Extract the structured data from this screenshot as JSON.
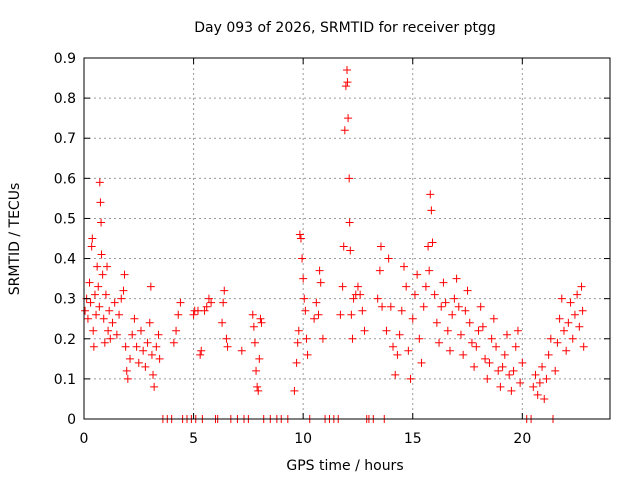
{
  "chart_data": {
    "type": "scatter",
    "title": "Day 093 of 2026, SRMTID for receiver ptgg",
    "xlabel": "GPS time / hours",
    "ylabel": "SRMTID / TECUs",
    "xlim": [
      0,
      24
    ],
    "ylim": [
      0,
      0.9
    ],
    "x_ticks": [
      0,
      5,
      10,
      15,
      20
    ],
    "x_tick_labels": [
      "0",
      "5",
      "10",
      "15",
      "20"
    ],
    "y_ticks": [
      0,
      0.1,
      0.2,
      0.3,
      0.4,
      0.5,
      0.6,
      0.7,
      0.8,
      0.9
    ],
    "y_tick_labels": [
      "0",
      "0.1",
      "0.2",
      "0.3",
      "0.4",
      "0.5",
      "0.6",
      "0.7",
      "0.8",
      "0.9"
    ],
    "grid": true,
    "marker": "+",
    "color": "#ff0000",
    "series": [
      {
        "name": "SRMTID",
        "points": [
          [
            0.05,
            0.27
          ],
          [
            0.12,
            0.3
          ],
          [
            0.18,
            0.25
          ],
          [
            0.25,
            0.34
          ],
          [
            0.3,
            0.29
          ],
          [
            0.35,
            0.43
          ],
          [
            0.38,
            0.45
          ],
          [
            0.42,
            0.22
          ],
          [
            0.45,
            0.18
          ],
          [
            0.5,
            0.31
          ],
          [
            0.55,
            0.26
          ],
          [
            0.6,
            0.38
          ],
          [
            0.65,
            0.33
          ],
          [
            0.7,
            0.28
          ],
          [
            0.72,
            0.59
          ],
          [
            0.75,
            0.54
          ],
          [
            0.78,
            0.49
          ],
          [
            0.8,
            0.41
          ],
          [
            0.85,
            0.36
          ],
          [
            0.9,
            0.25
          ],
          [
            0.95,
            0.19
          ],
          [
            1.0,
            0.31
          ],
          [
            1.05,
            0.38
          ],
          [
            1.1,
            0.22
          ],
          [
            1.15,
            0.27
          ],
          [
            1.2,
            0.2
          ],
          [
            1.3,
            0.24
          ],
          [
            1.4,
            0.29
          ],
          [
            1.5,
            0.21
          ],
          [
            1.6,
            0.26
          ],
          [
            1.7,
            0.3
          ],
          [
            1.8,
            0.32
          ],
          [
            1.85,
            0.36
          ],
          [
            1.9,
            0.18
          ],
          [
            1.95,
            0.12
          ],
          [
            2.0,
            0.1
          ],
          [
            2.1,
            0.15
          ],
          [
            2.2,
            0.21
          ],
          [
            2.3,
            0.25
          ],
          [
            2.4,
            0.18
          ],
          [
            2.5,
            0.14
          ],
          [
            2.6,
            0.22
          ],
          [
            2.7,
            0.17
          ],
          [
            2.8,
            0.13
          ],
          [
            2.9,
            0.19
          ],
          [
            3.0,
            0.24
          ],
          [
            3.05,
            0.33
          ],
          [
            3.1,
            0.16
          ],
          [
            3.15,
            0.11
          ],
          [
            3.2,
            0.08
          ],
          [
            3.3,
            0.18
          ],
          [
            3.4,
            0.21
          ],
          [
            3.45,
            0.15
          ],
          [
            3.6,
            0.0
          ],
          [
            3.8,
            0.0
          ],
          [
            4.0,
            0.0
          ],
          [
            4.1,
            0.19
          ],
          [
            4.2,
            0.22
          ],
          [
            4.3,
            0.26
          ],
          [
            4.4,
            0.29
          ],
          [
            4.5,
            0.0
          ],
          [
            4.7,
            0.0
          ],
          [
            4.9,
            0.0
          ],
          [
            5.0,
            0.26
          ],
          [
            5.05,
            0.27
          ],
          [
            5.1,
            0.0
          ],
          [
            5.2,
            0.27
          ],
          [
            5.3,
            0.16
          ],
          [
            5.35,
            0.17
          ],
          [
            5.4,
            0.0
          ],
          [
            5.5,
            0.27
          ],
          [
            5.6,
            0.28
          ],
          [
            5.7,
            0.3
          ],
          [
            5.8,
            0.29
          ],
          [
            6.0,
            0.0
          ],
          [
            6.1,
            0.0
          ],
          [
            6.3,
            0.24
          ],
          [
            6.35,
            0.29
          ],
          [
            6.4,
            0.32
          ],
          [
            6.5,
            0.2
          ],
          [
            6.55,
            0.18
          ],
          [
            6.7,
            0.0
          ],
          [
            7.0,
            0.0
          ],
          [
            7.2,
            0.17
          ],
          [
            7.3,
            0.0
          ],
          [
            7.5,
            0.0
          ],
          [
            7.7,
            0.26
          ],
          [
            7.75,
            0.23
          ],
          [
            7.8,
            0.19
          ],
          [
            7.85,
            0.12
          ],
          [
            7.9,
            0.08
          ],
          [
            7.95,
            0.07
          ],
          [
            8.0,
            0.15
          ],
          [
            8.05,
            0.25
          ],
          [
            8.1,
            0.24
          ],
          [
            8.2,
            0.0
          ],
          [
            8.5,
            0.0
          ],
          [
            8.8,
            0.0
          ],
          [
            9.0,
            0.0
          ],
          [
            9.3,
            0.0
          ],
          [
            9.6,
            0.07
          ],
          [
            9.7,
            0.14
          ],
          [
            9.75,
            0.19
          ],
          [
            9.8,
            0.22
          ],
          [
            9.85,
            0.46
          ],
          [
            9.9,
            0.45
          ],
          [
            9.95,
            0.4
          ],
          [
            10.0,
            0.35
          ],
          [
            10.05,
            0.3
          ],
          [
            10.1,
            0.27
          ],
          [
            10.15,
            0.2
          ],
          [
            10.2,
            0.16
          ],
          [
            10.3,
            0.0
          ],
          [
            10.5,
            0.25
          ],
          [
            10.6,
            0.29
          ],
          [
            10.7,
            0.26
          ],
          [
            10.75,
            0.37
          ],
          [
            10.8,
            0.34
          ],
          [
            10.9,
            0.2
          ],
          [
            11.0,
            0.0
          ],
          [
            11.2,
            0.0
          ],
          [
            11.4,
            0.0
          ],
          [
            11.6,
            0.0
          ],
          [
            11.7,
            0.26
          ],
          [
            11.8,
            0.33
          ],
          [
            11.85,
            0.43
          ],
          [
            11.9,
            0.72
          ],
          [
            11.95,
            0.83
          ],
          [
            12.0,
            0.87
          ],
          [
            12.02,
            0.84
          ],
          [
            12.05,
            0.75
          ],
          [
            12.1,
            0.6
          ],
          [
            12.12,
            0.49
          ],
          [
            12.15,
            0.42
          ],
          [
            12.2,
            0.26
          ],
          [
            12.25,
            0.2
          ],
          [
            12.3,
            0.3
          ],
          [
            12.4,
            0.31
          ],
          [
            12.5,
            0.33
          ],
          [
            12.6,
            0.31
          ],
          [
            12.7,
            0.27
          ],
          [
            12.8,
            0.22
          ],
          [
            12.9,
            0.0
          ],
          [
            13.0,
            0.0
          ],
          [
            13.2,
            0.0
          ],
          [
            13.4,
            0.3
          ],
          [
            13.5,
            0.37
          ],
          [
            13.55,
            0.43
          ],
          [
            13.6,
            0.28
          ],
          [
            13.7,
            0.0
          ],
          [
            13.8,
            0.22
          ],
          [
            13.9,
            0.4
          ],
          [
            14.0,
            0.28
          ],
          [
            14.1,
            0.18
          ],
          [
            14.2,
            0.11
          ],
          [
            14.3,
            0.16
          ],
          [
            14.4,
            0.21
          ],
          [
            14.5,
            0.27
          ],
          [
            14.6,
            0.38
          ],
          [
            14.7,
            0.33
          ],
          [
            14.8,
            0.17
          ],
          [
            14.9,
            0.1
          ],
          [
            15.0,
            0.25
          ],
          [
            15.1,
            0.31
          ],
          [
            15.2,
            0.36
          ],
          [
            15.3,
            0.2
          ],
          [
            15.4,
            0.14
          ],
          [
            15.5,
            0.28
          ],
          [
            15.6,
            0.33
          ],
          [
            15.7,
            0.43
          ],
          [
            15.75,
            0.37
          ],
          [
            15.8,
            0.56
          ],
          [
            15.85,
            0.52
          ],
          [
            15.9,
            0.44
          ],
          [
            16.0,
            0.31
          ],
          [
            16.1,
            0.24
          ],
          [
            16.2,
            0.19
          ],
          [
            16.3,
            0.28
          ],
          [
            16.4,
            0.34
          ],
          [
            16.5,
            0.29
          ],
          [
            16.6,
            0.22
          ],
          [
            16.7,
            0.17
          ],
          [
            16.8,
            0.26
          ],
          [
            16.9,
            0.3
          ],
          [
            17.0,
            0.35
          ],
          [
            17.1,
            0.28
          ],
          [
            17.2,
            0.21
          ],
          [
            17.3,
            0.16
          ],
          [
            17.4,
            0.27
          ],
          [
            17.5,
            0.32
          ],
          [
            17.6,
            0.24
          ],
          [
            17.7,
            0.19
          ],
          [
            17.8,
            0.13
          ],
          [
            17.9,
            0.18
          ],
          [
            18.0,
            0.22
          ],
          [
            18.1,
            0.28
          ],
          [
            18.2,
            0.23
          ],
          [
            18.3,
            0.15
          ],
          [
            18.4,
            0.1
          ],
          [
            18.5,
            0.14
          ],
          [
            18.6,
            0.2
          ],
          [
            18.7,
            0.25
          ],
          [
            18.8,
            0.18
          ],
          [
            18.9,
            0.12
          ],
          [
            19.0,
            0.08
          ],
          [
            19.1,
            0.13
          ],
          [
            19.2,
            0.16
          ],
          [
            19.3,
            0.21
          ],
          [
            19.4,
            0.11
          ],
          [
            19.5,
            0.07
          ],
          [
            19.6,
            0.12
          ],
          [
            19.7,
            0.18
          ],
          [
            19.8,
            0.22
          ],
          [
            19.9,
            0.09
          ],
          [
            20.0,
            0.14
          ],
          [
            20.2,
            0.0
          ],
          [
            20.4,
            0.0
          ],
          [
            20.5,
            0.08
          ],
          [
            20.6,
            0.11
          ],
          [
            20.7,
            0.06
          ],
          [
            20.8,
            0.09
          ],
          [
            20.9,
            0.13
          ],
          [
            21.0,
            0.05
          ],
          [
            21.1,
            0.1
          ],
          [
            21.2,
            0.16
          ],
          [
            21.3,
            0.2
          ],
          [
            21.4,
            0.0
          ],
          [
            21.5,
            0.12
          ],
          [
            21.6,
            0.19
          ],
          [
            21.7,
            0.25
          ],
          [
            21.8,
            0.3
          ],
          [
            21.9,
            0.22
          ],
          [
            22.0,
            0.17
          ],
          [
            22.1,
            0.24
          ],
          [
            22.2,
            0.29
          ],
          [
            22.3,
            0.2
          ],
          [
            22.4,
            0.26
          ],
          [
            22.5,
            0.31
          ],
          [
            22.6,
            0.23
          ],
          [
            22.7,
            0.33
          ],
          [
            22.75,
            0.27
          ],
          [
            22.8,
            0.18
          ]
        ]
      }
    ]
  }
}
